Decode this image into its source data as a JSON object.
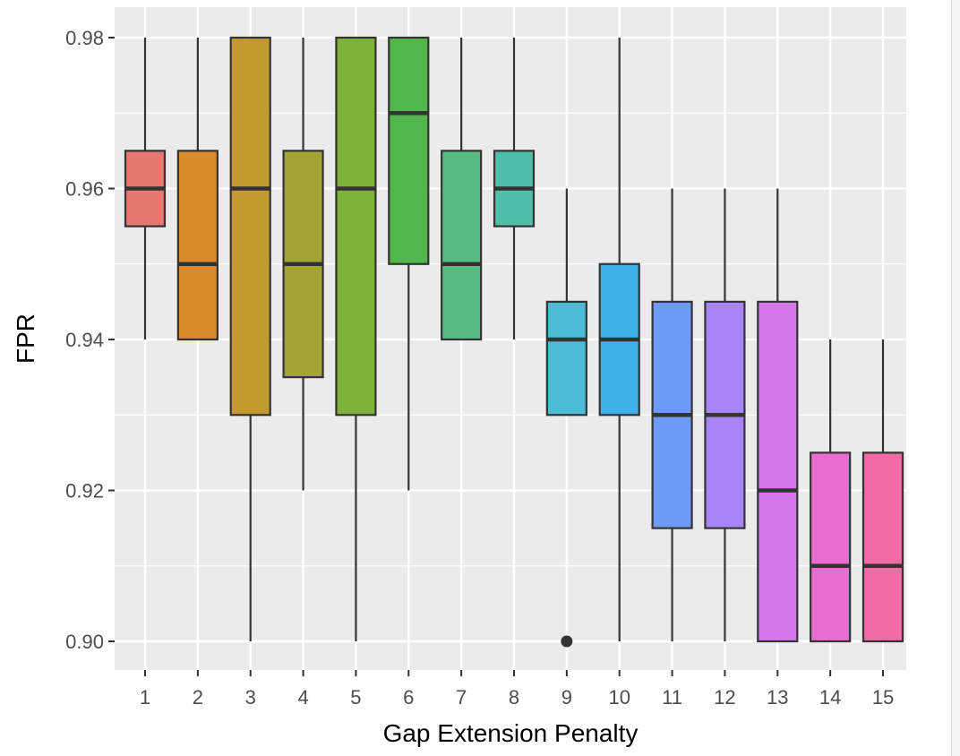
{
  "chart_data": {
    "type": "boxplot",
    "xlabel": "Gap Extension Penalty",
    "ylabel": "FPR",
    "ylim": [
      0.89,
      0.99
    ],
    "y_ticks": [
      "0.90",
      "0.92",
      "0.94",
      "0.96",
      "0.98"
    ],
    "y_tick_values": [
      0.9,
      0.92,
      0.94,
      0.96,
      0.98
    ],
    "grid": true,
    "legend": "none",
    "categories": [
      "1",
      "2",
      "3",
      "4",
      "5",
      "6",
      "7",
      "8",
      "9",
      "10",
      "11",
      "12",
      "13",
      "14",
      "15"
    ],
    "boxes": [
      {
        "label": "1",
        "whisker_low": 0.94,
        "q1": 0.955,
        "median": 0.96,
        "q3": 0.965,
        "whisker_high": 0.98,
        "outliers": [],
        "color": "#E8786F"
      },
      {
        "label": "2",
        "whisker_low": 0.94,
        "q1": 0.94,
        "median": 0.95,
        "q3": 0.965,
        "whisker_high": 0.98,
        "outliers": [],
        "color": "#DB8A2E"
      },
      {
        "label": "3",
        "whisker_low": 0.9,
        "q1": 0.93,
        "median": 0.96,
        "q3": 0.98,
        "whisker_high": 0.98,
        "outliers": [],
        "color": "#C49A30"
      },
      {
        "label": "4",
        "whisker_low": 0.92,
        "q1": 0.935,
        "median": 0.95,
        "q3": 0.965,
        "whisker_high": 0.98,
        "outliers": [],
        "color": "#A3A532"
      },
      {
        "label": "5",
        "whisker_low": 0.9,
        "q1": 0.93,
        "median": 0.96,
        "q3": 0.98,
        "whisker_high": 0.98,
        "outliers": [],
        "color": "#7CB13A"
      },
      {
        "label": "6",
        "whisker_low": 0.92,
        "q1": 0.95,
        "median": 0.97,
        "q3": 0.98,
        "whisker_high": 0.98,
        "outliers": [],
        "color": "#52B74B"
      },
      {
        "label": "7",
        "whisker_low": 0.94,
        "q1": 0.94,
        "median": 0.95,
        "q3": 0.965,
        "whisker_high": 0.98,
        "outliers": [],
        "color": "#55BD82"
      },
      {
        "label": "8",
        "whisker_low": 0.94,
        "q1": 0.955,
        "median": 0.96,
        "q3": 0.965,
        "whisker_high": 0.98,
        "outliers": [],
        "color": "#4BBFAA"
      },
      {
        "label": "9",
        "whisker_low": 0.93,
        "q1": 0.93,
        "median": 0.94,
        "q3": 0.945,
        "whisker_high": 0.96,
        "outliers": [
          0.9
        ],
        "color": "#4ABCD6"
      },
      {
        "label": "10",
        "whisker_low": 0.9,
        "q1": 0.93,
        "median": 0.94,
        "q3": 0.95,
        "whisker_high": 0.98,
        "outliers": [],
        "color": "#41B1EC"
      },
      {
        "label": "11",
        "whisker_low": 0.9,
        "q1": 0.915,
        "median": 0.93,
        "q3": 0.945,
        "whisker_high": 0.96,
        "outliers": [],
        "color": "#6B9BF7"
      },
      {
        "label": "12",
        "whisker_low": 0.9,
        "q1": 0.915,
        "median": 0.93,
        "q3": 0.945,
        "whisker_high": 0.96,
        "outliers": [],
        "color": "#A984F6"
      },
      {
        "label": "13",
        "whisker_low": 0.9,
        "q1": 0.9,
        "median": 0.92,
        "q3": 0.945,
        "whisker_high": 0.96,
        "outliers": [],
        "color": "#D576EB"
      },
      {
        "label": "14",
        "whisker_low": 0.9,
        "q1": 0.9,
        "median": 0.91,
        "q3": 0.925,
        "whisker_high": 0.94,
        "outliers": [],
        "color": "#E86CD2"
      },
      {
        "label": "15",
        "whisker_low": 0.9,
        "q1": 0.9,
        "median": 0.91,
        "q3": 0.925,
        "whisker_high": 0.94,
        "outliers": [],
        "color": "#F06CA5"
      }
    ]
  },
  "colors": {
    "panel_background": "#EBEBEB",
    "grid": "#FFFFFF",
    "box_outline": "#333333",
    "tick_text": "#4D4D4D"
  }
}
